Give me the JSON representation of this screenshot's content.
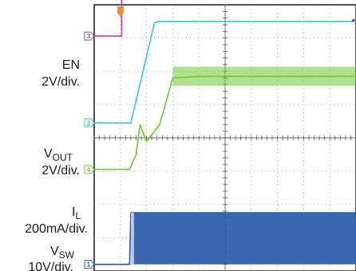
{
  "chart_data": {
    "type": "line",
    "grid": true,
    "time_axis": {
      "divisions": 10,
      "trigger_division": 1.0
    },
    "vertical_axis": {
      "divisions": 8
    },
    "channels": [
      {
        "id": "3",
        "name_main": "EN",
        "name_sub": "",
        "scale": "2V/div.",
        "color": "#b041a8",
        "x": [
          0,
          1.05,
          1.05,
          10
        ],
        "y": [
          7.06,
          7.06,
          8.6,
          8.6
        ]
      },
      {
        "id": "2",
        "name_main": "",
        "name_sub": "",
        "scale": "",
        "color": "#3fc6cc",
        "x": [
          0,
          1.05,
          1.4,
          2.3,
          2.45,
          10
        ],
        "y": [
          4.45,
          4.45,
          4.45,
          7.45,
          7.5,
          7.5
        ]
      },
      {
        "id": "4",
        "name_main": "V",
        "name_sub": "OUT",
        "scale": "2V/div.",
        "color": "#6cc630",
        "x": [
          0,
          1.35,
          1.6,
          1.75,
          2.0,
          2.5,
          3.0,
          4.0,
          10
        ],
        "y": [
          3.05,
          3.05,
          3.5,
          4.4,
          3.9,
          4.4,
          5.8,
          5.85,
          5.85
        ]
      },
      {
        "id": "1",
        "name_main": "V",
        "name_sub": "SW",
        "scale": "10V/div.",
        "color": "#2a5aa8",
        "x": [
          0,
          1.35,
          1.4,
          10
        ],
        "y": [
          0.2,
          0.2,
          1.75,
          1.75
        ]
      }
    ],
    "current_label": {
      "name_main": "I",
      "name_sub": "L",
      "scale": "200mA/div."
    }
  }
}
